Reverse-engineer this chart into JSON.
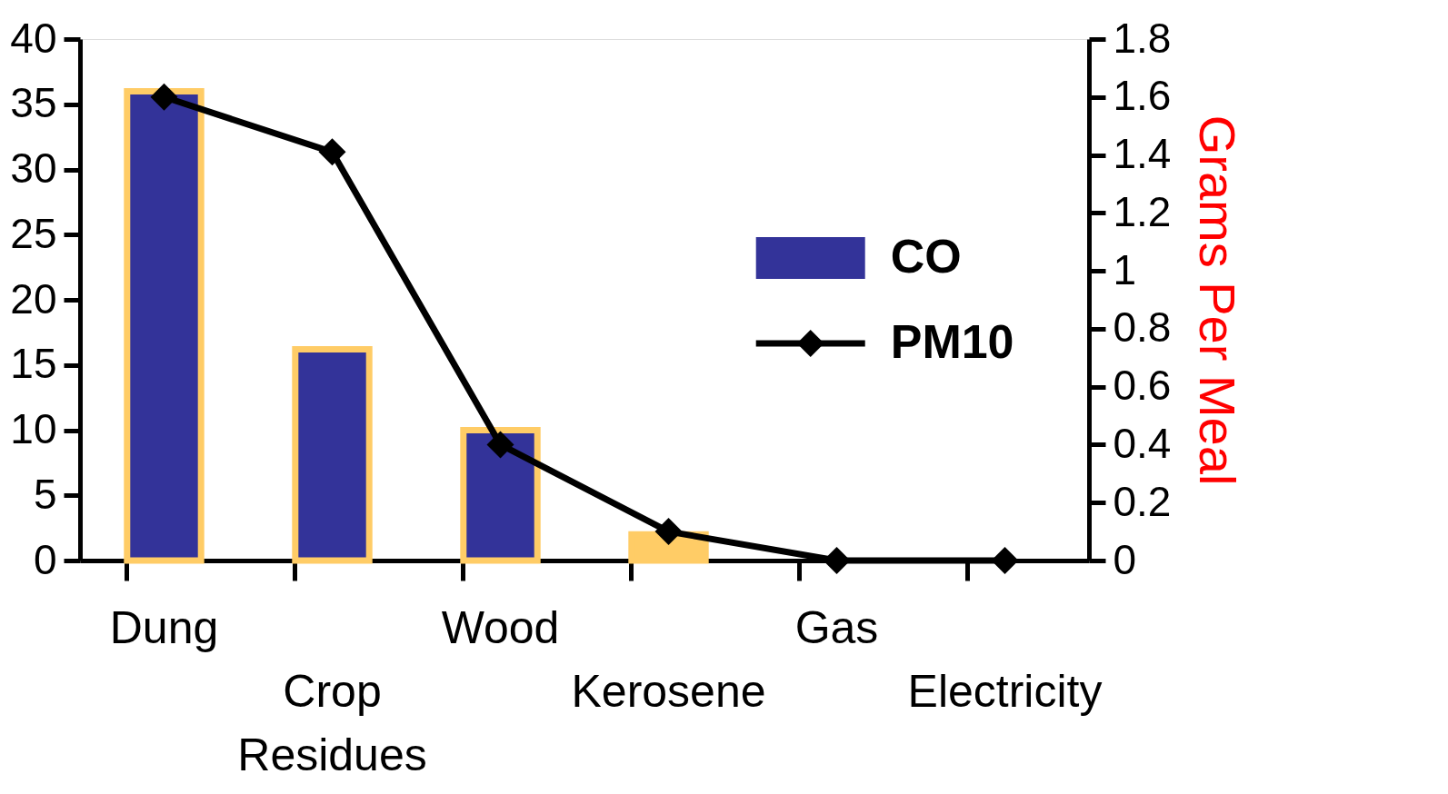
{
  "chart_data": {
    "type": "bar",
    "categories": [
      "Dung",
      "Crop Residues",
      "Wood",
      "Kerosene",
      "Gas",
      "Electricity"
    ],
    "series": [
      {
        "name": "CO",
        "color": "#333399",
        "colors": [
          "#333399",
          "#333399",
          "#333399",
          "#ffcc66",
          null,
          null
        ],
        "values": [
          36,
          16.2,
          10,
          2,
          null,
          null
        ]
      },
      {
        "name": "PM10",
        "type": "line",
        "axis": "y2",
        "color": "#000000",
        "marker": "diamond",
        "values": [
          1.6,
          1.41,
          0.4,
          0.1,
          0,
          0
        ]
      }
    ],
    "ylim": [
      0,
      40
    ],
    "yticks": [
      0,
      5,
      10,
      15,
      20,
      25,
      30,
      35,
      40
    ],
    "y2lim": [
      0,
      1.8
    ],
    "y2ticks": [
      0,
      0.2,
      0.4,
      0.6,
      0.8,
      1,
      1.2,
      1.4,
      1.6,
      1.8
    ],
    "y2label": "Grams Per Meal",
    "legend": "right",
    "grid": false
  }
}
